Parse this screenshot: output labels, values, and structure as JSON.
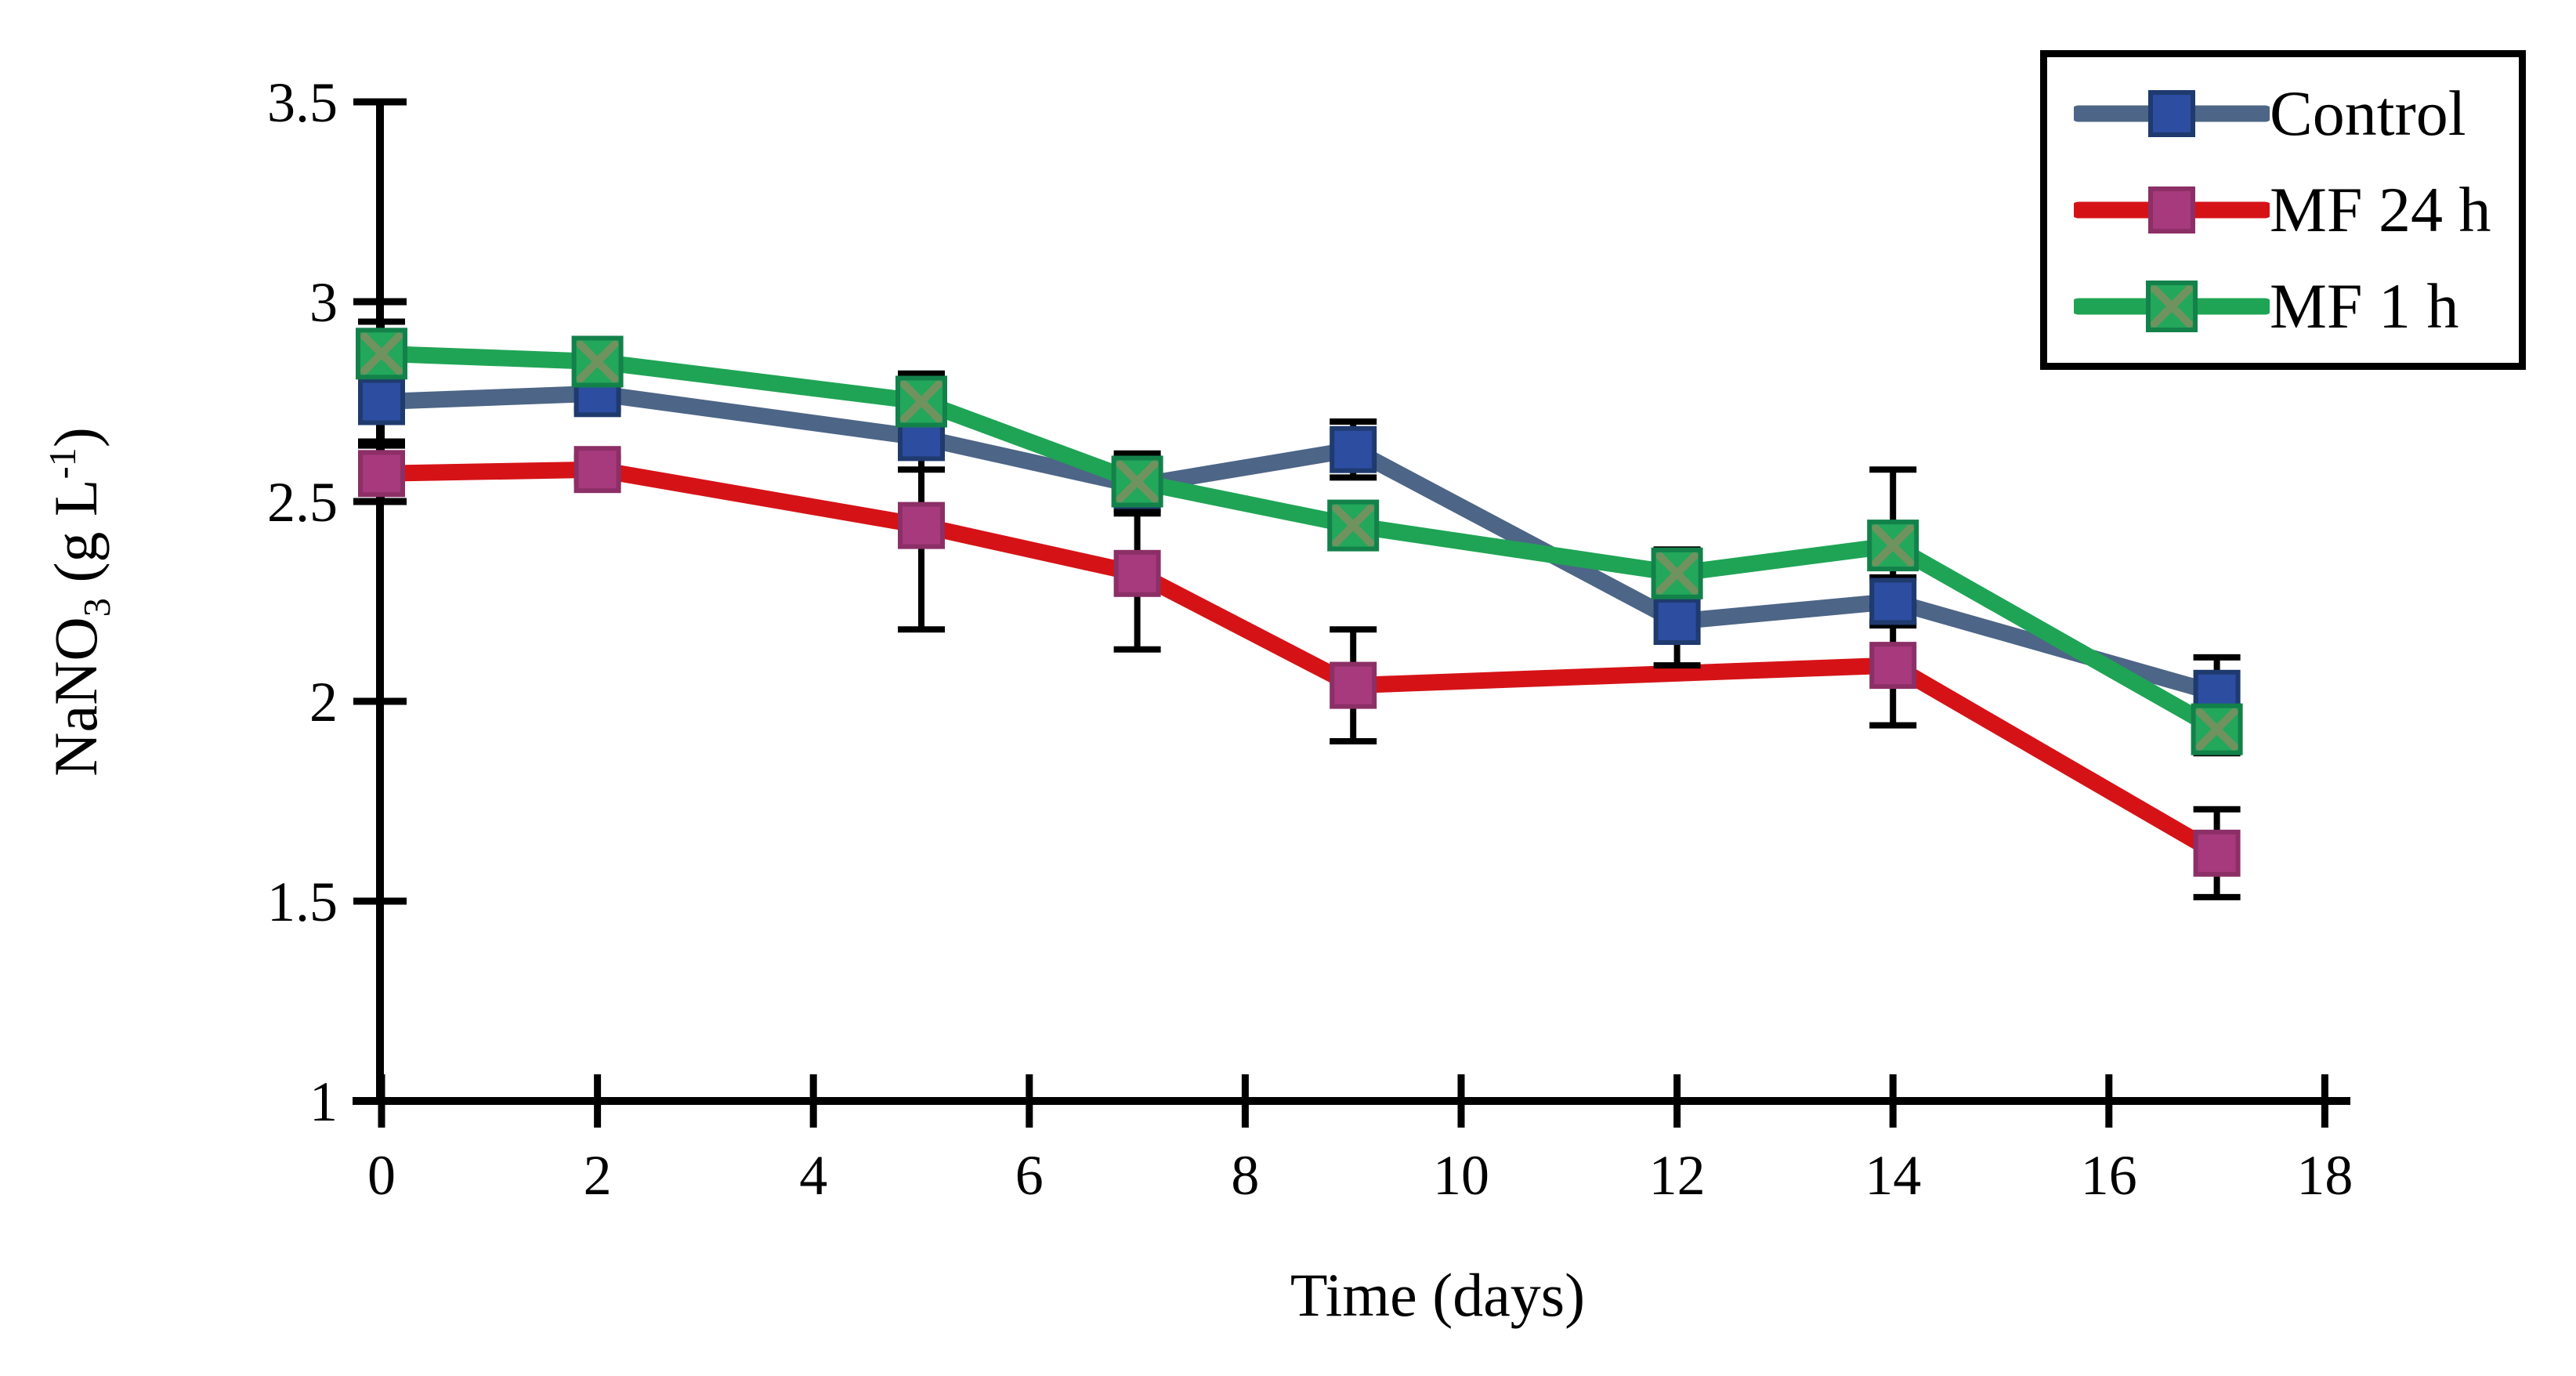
{
  "chart_data": {
    "type": "line",
    "title": "",
    "xlabel": "Time (days)",
    "ylabel": "NaNO3 (g L-1)",
    "ylabel_parts": {
      "base": "NaNO",
      "sub": "3",
      "mid": " (g L",
      "sup": "-1",
      "end": ")"
    },
    "xlim": [
      0,
      18
    ],
    "ylim": [
      1,
      3.5
    ],
    "grid": false,
    "legend_position": "top-right",
    "x_tick_labels": [
      "0",
      "2",
      "4",
      "6",
      "8",
      "10",
      "12",
      "14",
      "16",
      "18"
    ],
    "x_tick_values": [
      0,
      2,
      4,
      6,
      8,
      10,
      12,
      14,
      16,
      18
    ],
    "y_tick_labels": [
      "3.5",
      "3",
      "2.5",
      "2",
      "1.5",
      "1"
    ],
    "y_tick_values": [
      3.5,
      3,
      2.5,
      2,
      1.5,
      1
    ],
    "axis_color": "#000000",
    "series": [
      {
        "name": "Control",
        "line_color": "#4d6586",
        "marker": "square",
        "marker_color": "#2c4da0",
        "marker_edge": "#1f3a6e",
        "x": [
          0,
          2,
          5,
          7,
          9,
          12,
          14,
          17
        ],
        "y": [
          2.75,
          2.77,
          2.66,
          2.54,
          2.63,
          2.2,
          2.25,
          2.02
        ],
        "err": [
          0.1,
          0.04,
          0.08,
          0.07,
          0.07,
          0.11,
          0.06,
          0.09
        ]
      },
      {
        "name": "MF 24 h",
        "line_color": "#d51317",
        "marker": "square",
        "marker_color": "#a63a7d",
        "marker_edge": "#8c2f66",
        "x": [
          0,
          2,
          5,
          7,
          9,
          14,
          17
        ],
        "y": [
          2.57,
          2.58,
          2.44,
          2.32,
          2.04,
          2.09,
          1.62
        ],
        "err": [
          0.07,
          0.03,
          0.26,
          0.19,
          0.14,
          0.15,
          0.11
        ]
      },
      {
        "name": "MF 1 h",
        "line_color": "#1fa455",
        "marker": "square-x",
        "marker_color": "#23a75b",
        "marker_edge": "#13814a",
        "marker_cross": "#70925f",
        "x": [
          0,
          2,
          5,
          7,
          9,
          12,
          14,
          17
        ],
        "y": [
          2.87,
          2.85,
          2.75,
          2.55,
          2.44,
          2.32,
          2.39,
          1.93
        ],
        "err": [
          0.08,
          0.04,
          0.07,
          0.07,
          0.05,
          0.06,
          0.19,
          0.06
        ]
      }
    ]
  },
  "legend": {
    "items": [
      {
        "label": "Control"
      },
      {
        "label": "MF 24 h"
      },
      {
        "label": "MF 1 h"
      }
    ]
  }
}
